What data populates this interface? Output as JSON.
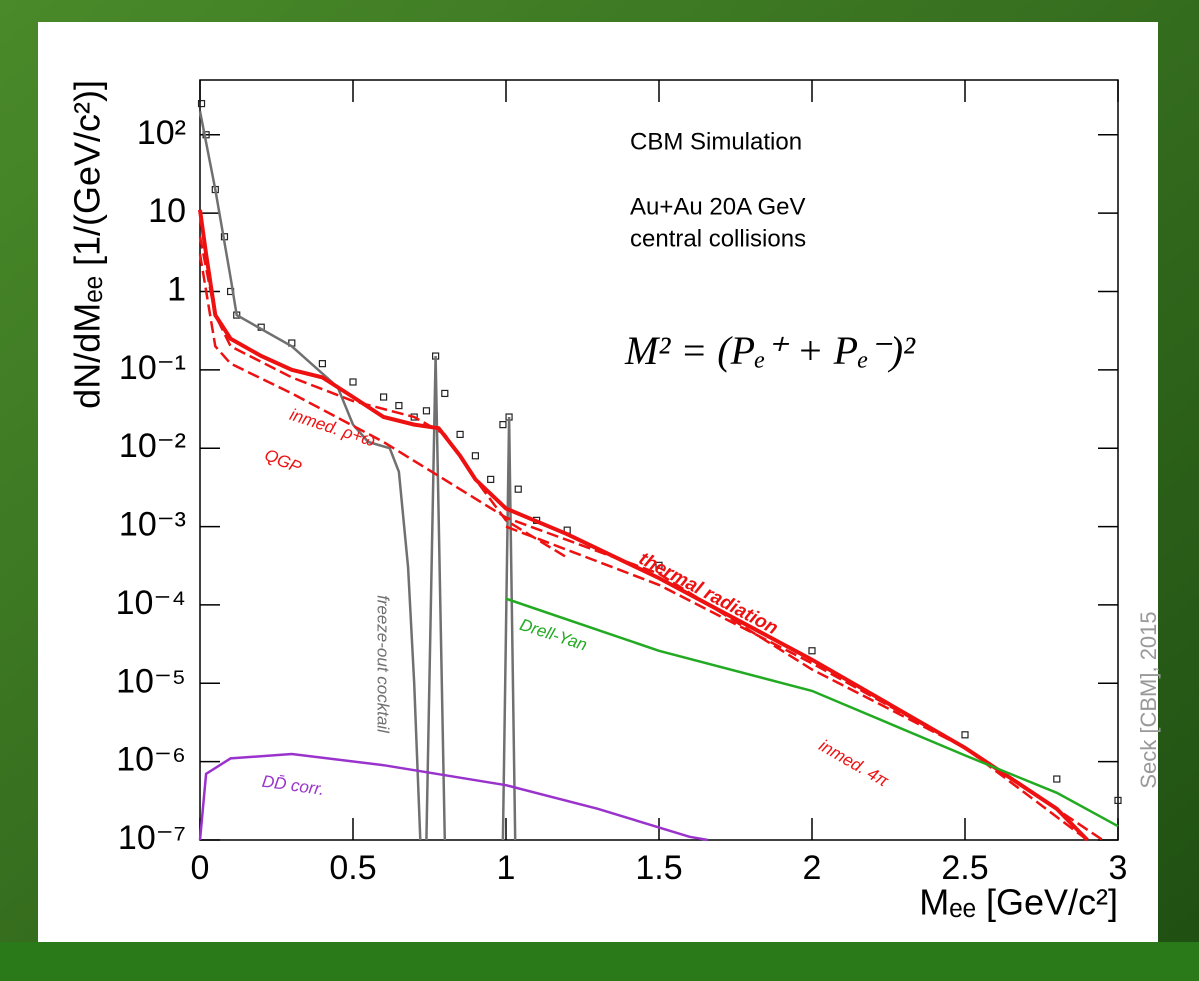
{
  "chart_data": {
    "type": "line",
    "notes": [
      "CBM Simulation",
      "Au+Au 20A GeV",
      "central collisions"
    ],
    "formula": "M² = (Pₑ⁺ + Pₑ⁻)²",
    "credit": "Seck [CBM], 2015",
    "xlabel": "Mₑₑ [GeV/c²]",
    "ylabel": "dN/dMₑₑ [1/(GeV/c²)]",
    "xlim": [
      0,
      3
    ],
    "xticks": [
      0,
      0.5,
      1,
      1.5,
      2,
      2.5,
      3
    ],
    "ylim": [
      1e-07,
      500
    ],
    "yscale": "log",
    "yticks": [
      {
        "value": 1e-07,
        "label": "10⁻⁷"
      },
      {
        "value": 1e-06,
        "label": "10⁻⁶"
      },
      {
        "value": 1e-05,
        "label": "10⁻⁵"
      },
      {
        "value": 0.0001,
        "label": "10⁻⁴"
      },
      {
        "value": 0.001,
        "label": "10⁻³"
      },
      {
        "value": 0.01,
        "label": "10⁻²"
      },
      {
        "value": 0.1,
        "label": "10⁻¹"
      },
      1,
      10,
      {
        "value": 100,
        "label": "10²"
      }
    ],
    "series": [
      {
        "color": "#222222",
        "marker": "square",
        "x": [
          0.005,
          0.02,
          0.05,
          0.08,
          0.1,
          0.12,
          0.2,
          0.3,
          0.4,
          0.5,
          0.6,
          0.65,
          0.7,
          0.74,
          0.77,
          0.8,
          0.85,
          0.9,
          0.95,
          0.99,
          1.01,
          1.04,
          1.1,
          1.2,
          1.5,
          2,
          2.5,
          2.8,
          3
        ],
        "values": [
          250,
          100,
          20,
          5,
          1,
          0.5,
          0.35,
          0.22,
          0.12,
          0.07,
          0.045,
          0.035,
          0.025,
          0.03,
          0.15,
          0.05,
          0.015,
          0.008,
          0.004,
          0.02,
          0.025,
          0.003,
          0.0012,
          0.0009,
          0.00032,
          2.6e-05,
          2.2e-06,
          6e-07,
          3.2e-07
        ]
      },
      {
        "name": "freeze-out cocktail",
        "color": "#707070",
        "dash": false,
        "x": [
          0,
          0.05,
          0.1,
          0.12,
          0.3,
          0.45,
          0.5,
          0.55,
          0.62,
          0.65,
          0.68,
          0.7,
          0.72,
          0.73,
          0.74,
          0.77,
          0.8,
          0.9,
          0.99,
          1.01,
          1.03
        ],
        "values": [
          200,
          20,
          1.5,
          0.5,
          0.2,
          0.06,
          0.02,
          0.012,
          0.01,
          0.005,
          0.0003,
          1e-05,
          1e-07,
          null,
          1e-07,
          0.15,
          1e-07,
          null,
          1e-07,
          0.025,
          1e-07
        ]
      },
      {
        "name": "thermal radiation",
        "color": "#ee1111",
        "dash": false,
        "x": [
          0,
          0.02,
          0.05,
          0.1,
          0.2,
          0.3,
          0.4,
          0.5,
          0.6,
          0.7,
          0.78,
          0.85,
          0.9,
          1,
          1.2,
          1.5,
          2,
          2.5,
          2.8,
          2.9
        ],
        "values": [
          11,
          3,
          0.5,
          0.25,
          0.15,
          0.1,
          0.08,
          0.045,
          0.025,
          0.02,
          0.018,
          0.008,
          0.004,
          0.0017,
          0.0008,
          0.00022,
          2e-05,
          1.5e-06,
          2.5e-07,
          1e-07
        ]
      },
      {
        "name": "inmed. ρ+ω",
        "color": "#ee1111",
        "dash": true,
        "x": [
          0,
          0.05,
          0.1,
          0.3,
          0.5,
          0.7,
          0.8,
          0.9,
          1,
          1.2
        ],
        "values": [
          5,
          0.5,
          0.2,
          0.08,
          0.04,
          0.025,
          0.015,
          0.004,
          0.0012,
          0.0004
        ]
      },
      {
        "name": "QGP",
        "color": "#ee1111",
        "dash": true,
        "x": [
          0,
          0.05,
          0.1,
          0.3,
          0.6,
          1,
          1.5,
          2,
          2.5,
          2.9
        ],
        "values": [
          3,
          0.2,
          0.12,
          0.05,
          0.012,
          0.0013,
          0.00025,
          1.5e-05,
          1.5e-06,
          1e-07
        ]
      },
      {
        "name": "inmed. 4π",
        "color": "#ee1111",
        "dash": true,
        "x": [
          1,
          1.5,
          2,
          2.5,
          2.95
        ],
        "values": [
          0.001,
          0.00018,
          1.8e-05,
          1.5e-06,
          1e-07
        ]
      },
      {
        "name": "Drell-Yan",
        "color": "#22aa22",
        "dash": false,
        "x": [
          1,
          1.5,
          2,
          2.5,
          2.8,
          3
        ],
        "values": [
          0.00012,
          2.6e-05,
          8e-06,
          1.2e-06,
          4e-07,
          1.5e-07
        ]
      },
      {
        "name": "DD̄ corr.",
        "color": "#9933cc",
        "dash": false,
        "x": [
          0,
          0.02,
          0.1,
          0.3,
          0.6,
          1,
          1.3,
          1.6,
          1.66
        ],
        "values": [
          1e-07,
          7e-07,
          1.1e-06,
          1.25e-06,
          9e-07,
          5e-07,
          2.5e-07,
          1.1e-07,
          1e-07
        ]
      }
    ]
  }
}
